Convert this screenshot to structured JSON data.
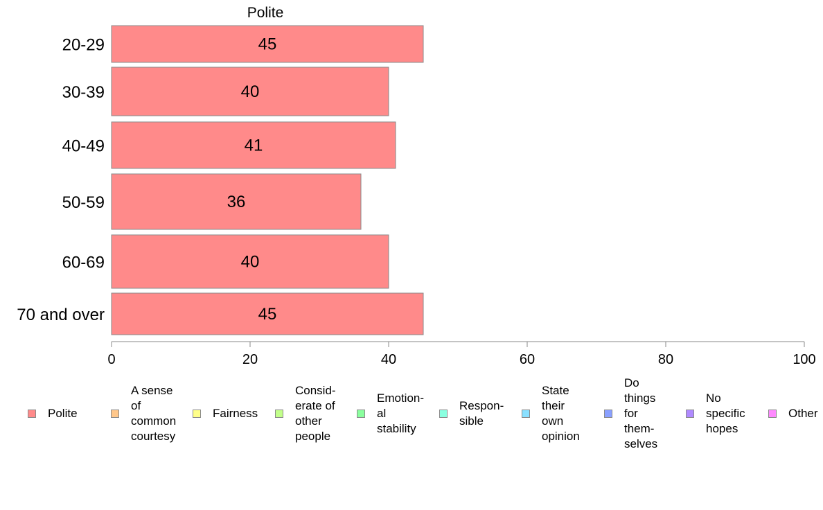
{
  "chart_data": {
    "type": "bar",
    "orientation": "horizontal",
    "title": "Polite",
    "categories": [
      "20-29",
      "30-39",
      "40-49",
      "50-59",
      "60-69",
      "70 and over"
    ],
    "values": [
      45,
      40,
      41,
      36,
      40,
      45
    ],
    "xlim": [
      0,
      100
    ],
    "xticks": [
      0,
      20,
      40,
      60,
      80,
      100
    ],
    "grid": false,
    "bar_color": "#ff8a8a",
    "legend_position": "bottom",
    "legend": [
      {
        "label": "Polite",
        "color": "#ff8a8a"
      },
      {
        "label": "A sense\nof\ncommon\ncourtesy",
        "color": "#ffc78a"
      },
      {
        "label": "Fairness",
        "color": "#ffff8a"
      },
      {
        "label": "Consid-\nerate of\nother\npeople",
        "color": "#c2ff8a"
      },
      {
        "label": "Emotion-\nal\nstability",
        "color": "#8aff9e"
      },
      {
        "label": "Respon-\nsible",
        "color": "#8affe0"
      },
      {
        "label": "State\ntheir\nown\nopinion",
        "color": "#8ae0ff"
      },
      {
        "label": "Do\nthings\nfor\nthem-\nselves",
        "color": "#8aa0ff"
      },
      {
        "label": "No\nspecific\nhopes",
        "color": "#b08aff"
      },
      {
        "label": "Other",
        "color": "#ff8aff"
      }
    ]
  }
}
